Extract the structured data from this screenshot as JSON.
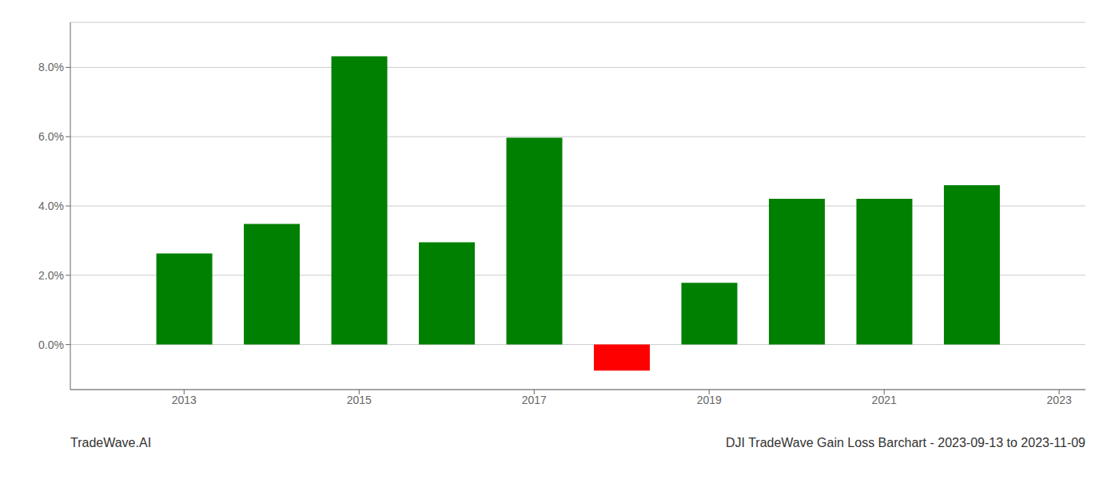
{
  "chart_data": {
    "type": "bar",
    "title": "DJI TradeWave Gain Loss Barchart - 2023-09-13 to 2023-11-09",
    "annotations": [
      "TradeWave.AI"
    ],
    "x": [
      2013,
      2014,
      2015,
      2016,
      2017,
      2018,
      2019,
      2020,
      2021,
      2022
    ],
    "values": [
      0.0263,
      0.0348,
      0.0832,
      0.0295,
      0.0597,
      -0.0075,
      0.0178,
      0.0421,
      0.0421,
      0.046
    ],
    "colors": [
      "#008000",
      "#008000",
      "#008000",
      "#008000",
      "#008000",
      "#ff0000",
      "#008000",
      "#008000",
      "#008000",
      "#008000"
    ],
    "xlim": [
      2011.7,
      2023.3
    ],
    "xticks": [
      2013,
      2015,
      2017,
      2019,
      2021,
      2023
    ],
    "ylim": [
      -0.013,
      0.093
    ],
    "yticks": [
      {
        "value": 0.0,
        "label": "0.0%"
      },
      {
        "value": 0.02,
        "label": "2.0%"
      },
      {
        "value": 0.04,
        "label": "4.0%"
      },
      {
        "value": 0.06,
        "label": "6.0%"
      },
      {
        "value": 0.08,
        "label": "8.0%"
      }
    ],
    "grid": true
  }
}
